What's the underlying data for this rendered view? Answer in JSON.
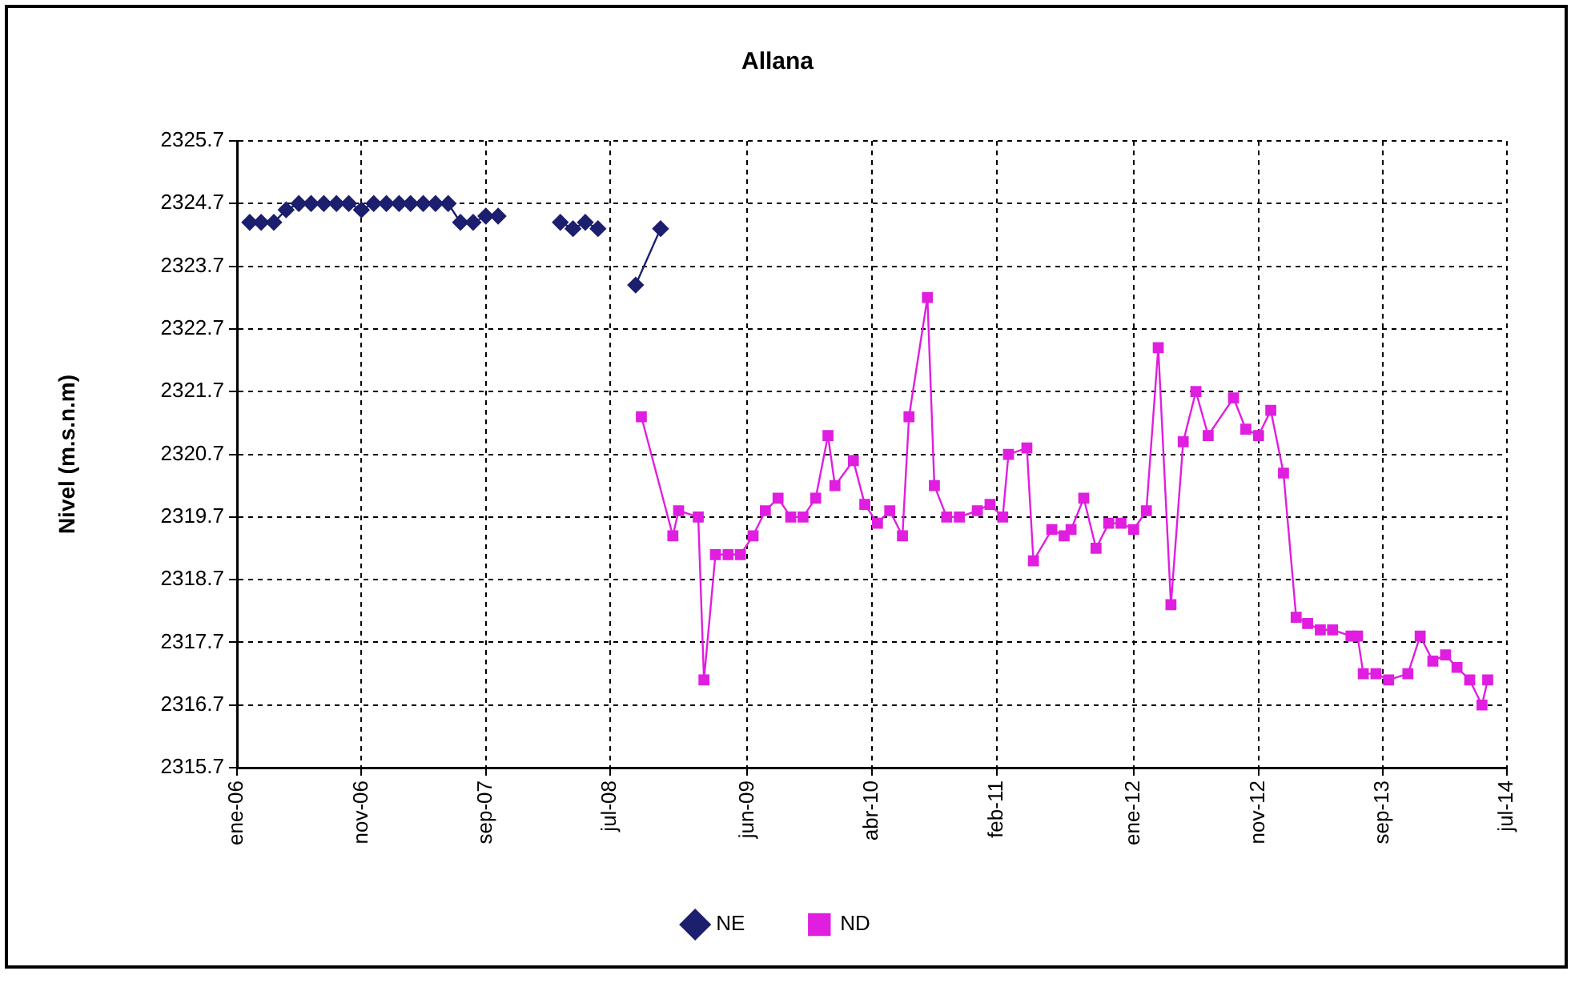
{
  "chart_data": {
    "type": "line",
    "title": "Allana",
    "ylabel": "Nivel (m.s.n.m)",
    "xlim": [
      "2006-01-01",
      "2014-07-01"
    ],
    "xticks": [
      {
        "value": "2006-01-01",
        "label": "ene-06"
      },
      {
        "value": "2006-11-01",
        "label": "nov-06"
      },
      {
        "value": "2007-09-01",
        "label": "sep-07"
      },
      {
        "value": "2008-07-01",
        "label": "jul-08"
      },
      {
        "value": "2009-06-01",
        "label": "jun-09"
      },
      {
        "value": "2010-04-01",
        "label": "abr-10"
      },
      {
        "value": "2011-02-01",
        "label": "feb-11"
      },
      {
        "value": "2012-01-01",
        "label": "ene-12"
      },
      {
        "value": "2012-11-01",
        "label": "nov-12"
      },
      {
        "value": "2013-09-01",
        "label": "sep-13"
      },
      {
        "value": "2014-07-01",
        "label": "jul-14"
      }
    ],
    "ylim": [
      2315.7,
      2325.7
    ],
    "yticks": [
      2315.7,
      2316.7,
      2317.7,
      2318.7,
      2319.7,
      2320.7,
      2321.7,
      2322.7,
      2323.7,
      2324.7,
      2325.7
    ],
    "grid": true,
    "legend": "bottom",
    "line_style": "solid",
    "series": [
      {
        "name": "NE",
        "color": "#1c1f6e",
        "marker": "diamond",
        "x": [
          "2006-02-01",
          "2006-03-01",
          "2006-04-01",
          "2006-05-01",
          "2006-06-01",
          "2006-07-01",
          "2006-08-01",
          "2006-09-01",
          "2006-10-01",
          "2006-11-01",
          "2006-12-01",
          "2007-01-01",
          "2007-02-01",
          "2007-03-01",
          "2007-04-01",
          "2007-05-01",
          "2007-06-01",
          "2007-07-01",
          "2007-08-01",
          "2007-09-01",
          "2007-10-01",
          "2008-01-01",
          "2008-03-01",
          "2008-04-01",
          "2008-05-01",
          "2008-06-01",
          "2008-07-15",
          "2008-09-01",
          "2008-11-01"
        ],
        "values": [
          2324.4,
          2324.4,
          2324.4,
          2324.6,
          2324.7,
          2324.7,
          2324.7,
          2324.7,
          2324.7,
          2324.6,
          2324.7,
          2324.7,
          2324.7,
          2324.7,
          2324.7,
          2324.7,
          2324.7,
          2324.4,
          2324.4,
          2324.5,
          2324.5,
          null,
          2324.4,
          2324.3,
          2324.4,
          2324.3,
          null,
          2323.4,
          2324.3
        ]
      },
      {
        "name": "ND",
        "color": "#e01ee0",
        "marker": "square",
        "x": [
          "2008-09-15",
          "2008-12-01",
          "2008-12-15",
          "2009-02-01",
          "2009-02-15",
          "2009-03-15",
          "2009-04-15",
          "2009-05-15",
          "2009-06-15",
          "2009-07-15",
          "2009-08-15",
          "2009-09-15",
          "2009-10-15",
          "2009-11-15",
          "2009-12-15",
          "2010-01-01",
          "2010-02-15",
          "2010-03-15",
          "2010-04-15",
          "2010-05-15",
          "2010-06-15",
          "2010-07-01",
          "2010-08-15",
          "2010-09-01",
          "2010-10-01",
          "2010-11-01",
          "2010-12-15",
          "2011-01-15",
          "2011-02-15",
          "2011-03-01",
          "2011-04-15",
          "2011-05-01",
          "2011-06-15",
          "2011-07-15",
          "2011-08-01",
          "2011-09-01",
          "2011-10-01",
          "2011-11-01",
          "2011-12-01",
          "2012-01-01",
          "2012-02-01",
          "2012-03-01",
          "2012-04-01",
          "2012-05-01",
          "2012-06-01",
          "2012-07-01",
          "2012-09-01",
          "2012-10-01",
          "2012-11-01",
          "2012-12-01",
          "2013-01-01",
          "2013-02-01",
          "2013-03-01",
          "2013-04-01",
          "2013-05-01",
          "2013-06-15",
          "2013-07-01",
          "2013-07-15",
          "2013-08-15",
          "2013-09-15",
          "2013-11-01",
          "2013-12-01",
          "2014-01-01",
          "2014-02-01",
          "2014-03-01",
          "2014-04-01",
          "2014-05-01",
          "2014-05-15"
        ],
        "values": [
          2321.3,
          2319.4,
          2319.8,
          2319.7,
          2317.1,
          2319.1,
          2319.1,
          2319.1,
          2319.4,
          2319.8,
          2320.0,
          2319.7,
          2319.7,
          2320.0,
          2321.0,
          2320.2,
          2320.6,
          2319.9,
          2319.6,
          2319.8,
          2319.4,
          2321.3,
          2323.2,
          2320.2,
          2319.7,
          2319.7,
          2319.8,
          2319.9,
          2319.7,
          2320.7,
          2320.8,
          2319.0,
          2319.5,
          2319.4,
          2319.5,
          2320.0,
          2319.2,
          2319.6,
          2319.6,
          2319.5,
          2319.8,
          2322.4,
          2318.3,
          2320.9,
          2321.7,
          2321.0,
          2321.6,
          2321.1,
          2321.0,
          2321.4,
          2320.4,
          2318.1,
          2318.0,
          2317.9,
          2317.9,
          2317.8,
          2317.8,
          2317.2,
          2317.2,
          2317.1,
          2317.2,
          2317.8,
          2317.4,
          2317.5,
          2317.3,
          2317.1,
          2316.7,
          2317.1
        ]
      }
    ]
  }
}
